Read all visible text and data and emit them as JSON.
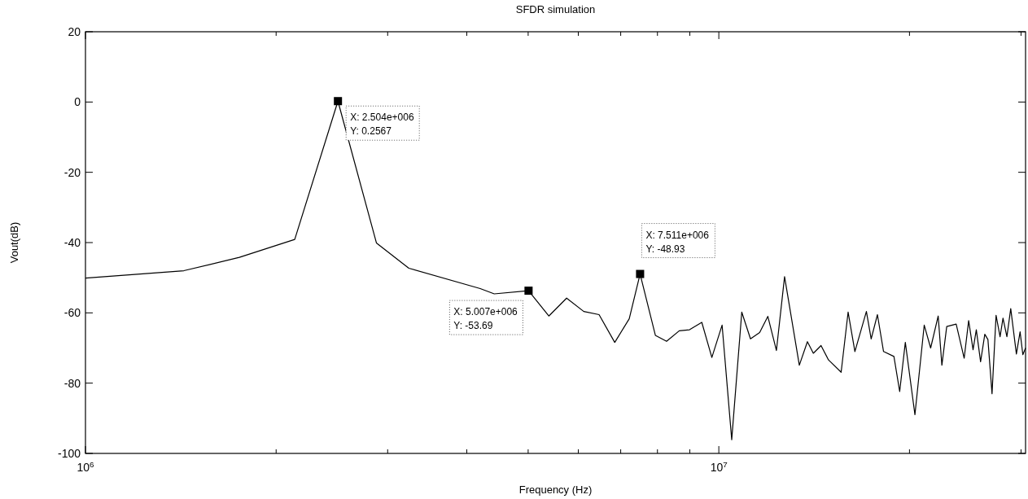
{
  "chart_data": {
    "type": "line",
    "title": "SFDR simulation",
    "xlabel": "Frequency (Hz)",
    "ylabel": "Vout(dB)",
    "log": "x",
    "grid": false,
    "marker": "none",
    "line_style": "solid",
    "xlim": [
      1000000,
      30500000
    ],
    "xticks": [
      {
        "value": 1000000,
        "label": "10$^{6}$"
      },
      {
        "value": 2000000,
        "label": null
      },
      {
        "value": 3000000,
        "label": null
      },
      {
        "value": 4000000,
        "label": null
      },
      {
        "value": 5000000,
        "label": null
      },
      {
        "value": 6000000,
        "label": null
      },
      {
        "value": 7000000,
        "label": null
      },
      {
        "value": 8000000,
        "label": null
      },
      {
        "value": 9000000,
        "label": null
      },
      {
        "value": 10000000,
        "label": "10$^{7}$"
      },
      {
        "value": 20000000,
        "label": null
      },
      {
        "value": 30000000,
        "label": null
      }
    ],
    "ylim": [
      -100,
      20
    ],
    "yticks": [
      -100,
      -80,
      -60,
      -40,
      -20,
      0,
      20
    ],
    "x": [
      1000000,
      1430000,
      1750000,
      2140000,
      2504000,
      2880000,
      3240000,
      4200000,
      4420000,
      5007000,
      5390000,
      5750000,
      6120000,
      6470000,
      6850000,
      7220000,
      7511000,
      7940000,
      8270000,
      8660000,
      8990000,
      9400000,
      9750000,
      10120000,
      10480000,
      10870000,
      11220000,
      11600000,
      11950000,
      12330000,
      12700000,
      13400000,
      13800000,
      14100000,
      14500000,
      14900000,
      15600000,
      16000000,
      16400000,
      17100000,
      17400000,
      17800000,
      18200000,
      18900000,
      19300000,
      19700000,
      20400000,
      21100000,
      21600000,
      22200000,
      22500000,
      22900000,
      23700000,
      24400000,
      24800000,
      25200000,
      25500000,
      25900000,
      26300000,
      26600000,
      27000000,
      27400000,
      27800000,
      28100000,
      28500000,
      28900000,
      29500000,
      29900000,
      30200000,
      30500000
    ],
    "series": [
      {
        "color": "#000000",
        "values": [
          -50.1,
          -48,
          -44.2,
          -39.1,
          0.2567,
          -40.1,
          -47.3,
          -53.1,
          -54.6,
          -53.69,
          -60.9,
          -55.8,
          -59.6,
          -60.5,
          -68.4,
          -61.7,
          -48.93,
          -66.4,
          -68.1,
          -65.1,
          -64.8,
          -62.7,
          -72.7,
          -63.5,
          -96.1,
          -59.8,
          -67.4,
          -65.6,
          -61,
          -70.7,
          -49.7,
          -74.9,
          -68.2,
          -71.5,
          -69.3,
          -73.4,
          -76.9,
          -59.8,
          -71,
          -59.6,
          -67.4,
          -60.5,
          -71,
          -72.4,
          -82.4,
          -68.4,
          -89,
          -63.5,
          -70,
          -60.9,
          -74.9,
          -63.9,
          -63.2,
          -72.9,
          -62.2,
          -70.5,
          -64.8,
          -73.9,
          -66.1,
          -67.6,
          -83,
          -60.7,
          -66.8,
          -61.5,
          -66.8,
          -58.8,
          -71.7,
          -65.4,
          -71.9,
          -70
        ]
      }
    ],
    "annotations": [
      {
        "text": "X: 2.504e+006\nY: 0.2567",
        "x": 2504000,
        "y": 0.2567
      },
      {
        "text": "X: 5.007e+006\nY: -53.69",
        "x": 5007000,
        "y": -53.69
      },
      {
        "text": "X: 7.511e+006\nY: -48.93",
        "x": 7511000,
        "y": -48.93
      }
    ]
  }
}
